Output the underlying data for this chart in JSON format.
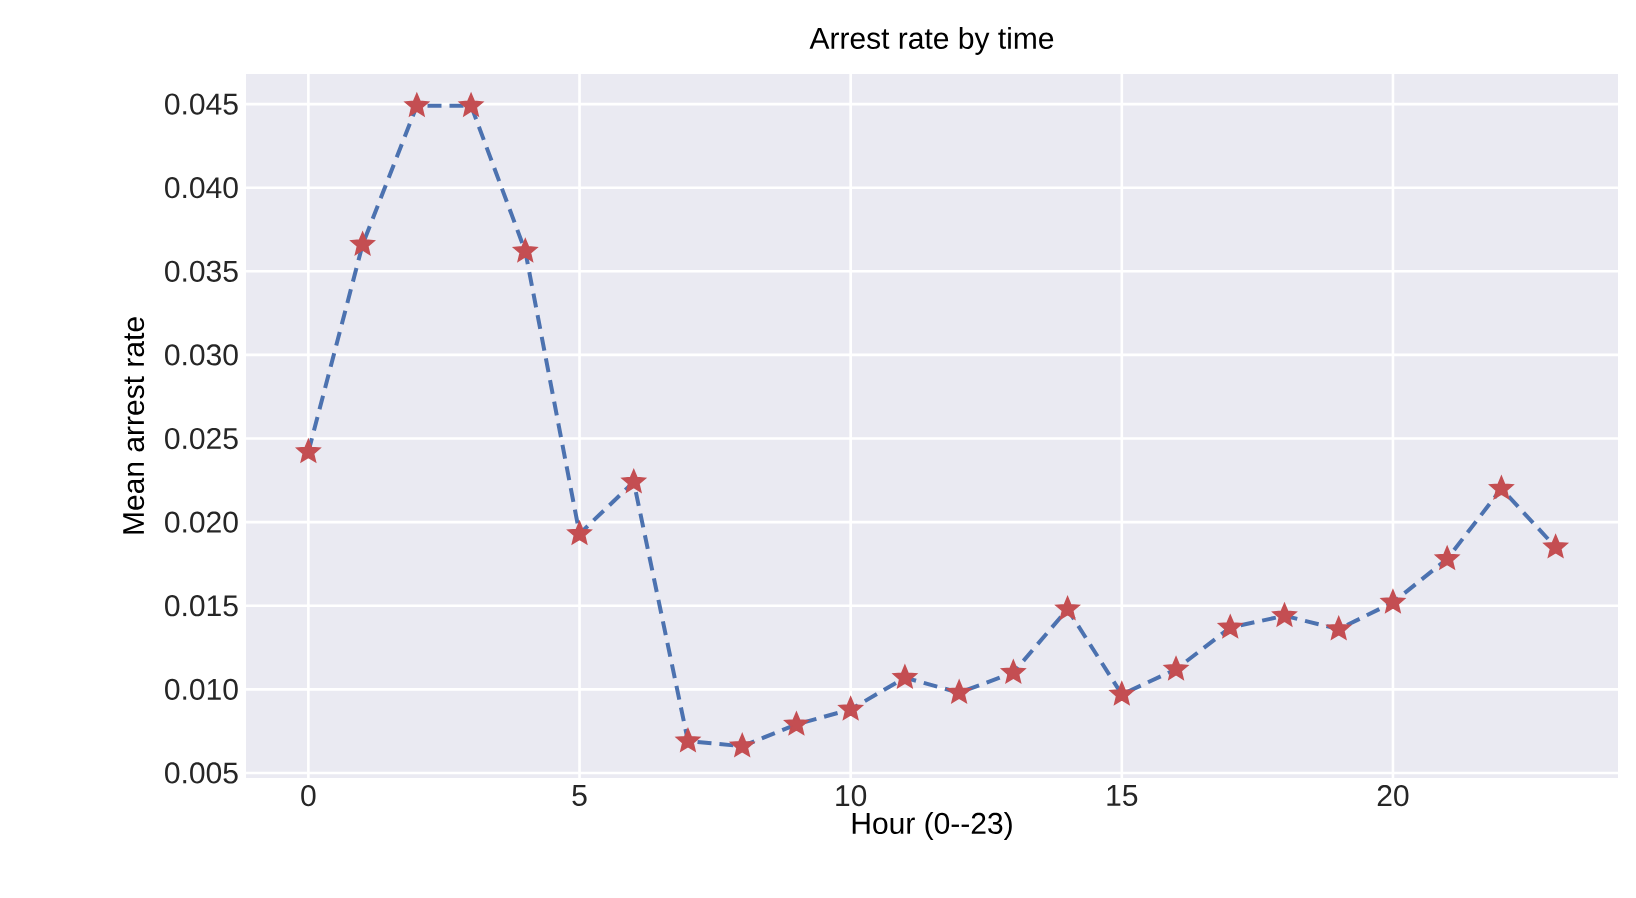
{
  "chart_data": {
    "type": "line",
    "title": "Arrest rate by time",
    "xlabel": "Hour (0--23)",
    "ylabel": "Mean arrest rate",
    "x": [
      0,
      1,
      2,
      3,
      4,
      5,
      6,
      7,
      8,
      9,
      10,
      11,
      12,
      13,
      14,
      15,
      16,
      17,
      18,
      19,
      20,
      21,
      22,
      23
    ],
    "series": [
      {
        "color": "#4c72b0",
        "colors": [
          "#c44e52",
          "#c44e52",
          "#c44e52",
          "#c44e52",
          "#c44e52",
          "#c44e52",
          "#c44e52",
          "#c44e52",
          "#c44e52",
          "#c44e52",
          "#c44e52",
          "#c44e52",
          "#c44e52",
          "#c44e52",
          "#c44e52",
          "#c44e52",
          "#c44e52",
          "#c44e52",
          "#c44e52",
          "#c44e52",
          "#c44e52",
          "#c44e52",
          "#c44e52",
          "#c44e52"
        ],
        "values": [
          0.0242,
          0.0366,
          0.0449,
          0.0449,
          0.0362,
          0.0193,
          0.0224,
          0.0069,
          0.0066,
          0.0079,
          0.0088,
          0.0107,
          0.0098,
          0.011,
          0.0148,
          0.0097,
          0.0112,
          0.0137,
          0.0144,
          0.0136,
          0.0152,
          0.0178,
          0.022,
          0.0185
        ]
      }
    ],
    "xlim": [
      -1.15,
      24.15
    ],
    "ylim": [
      0.0047,
      0.0468
    ],
    "xticks": [
      0,
      5,
      10,
      15,
      20
    ],
    "yticks": [
      {
        "value": 0.005,
        "label": "0.005"
      },
      {
        "value": 0.01,
        "label": "0.010"
      },
      {
        "value": 0.015,
        "label": "0.015"
      },
      {
        "value": 0.02,
        "label": "0.020"
      },
      {
        "value": 0.025,
        "label": "0.025"
      },
      {
        "value": 0.03,
        "label": "0.030"
      },
      {
        "value": 0.035,
        "label": "0.035"
      },
      {
        "value": 0.04,
        "label": "0.040"
      },
      {
        "value": 0.045,
        "label": "0.045"
      }
    ],
    "grid": true,
    "marker": "star",
    "line_style": "dashed"
  }
}
